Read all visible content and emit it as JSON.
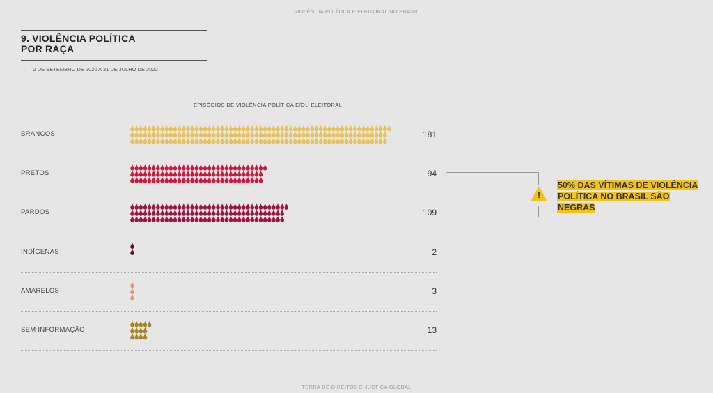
{
  "header": {
    "running_title": "VIOLÊNCIA POLÍTICA E ELEITORAL NO BRASIL",
    "footer": "TERRA DE DIREITOS E JUSTIÇA GLOBAL"
  },
  "section": {
    "title_line1": "9. VIOLÊNCIA POLÍTICA",
    "title_line2": "POR RAÇA",
    "date_range": "2 DE SETEMBRO DE 2020 A 31 DE JULHO DE 2022",
    "arrow_icon": "arrow-right-icon"
  },
  "chart_data": {
    "type": "bar",
    "xlabel": "EPISÓDIOS DE VIOLÊNCIA POLÍTICA E/OU ELEITORAL",
    "categories": [
      "BRANCOS",
      "PRETOS",
      "PARDOS",
      "INDÍGENAS",
      "AMARELOS",
      "SEM INFORMAÇÃO"
    ],
    "values": [
      181,
      94,
      109,
      2,
      3,
      13
    ],
    "colors": [
      "#e8c15a",
      "#c8193e",
      "#9c1540",
      "#6a0e24",
      "#e8937a",
      "#a8841e"
    ],
    "mark": "drop-icon",
    "grid": false
  },
  "callout": {
    "text": "50% DAS VÍTIMAS DE VIOLÊNCIA POLÍTICA NO BRASIL SÃO NEGRAS",
    "icon": "warning-icon",
    "highlight": "#f2c31c"
  }
}
